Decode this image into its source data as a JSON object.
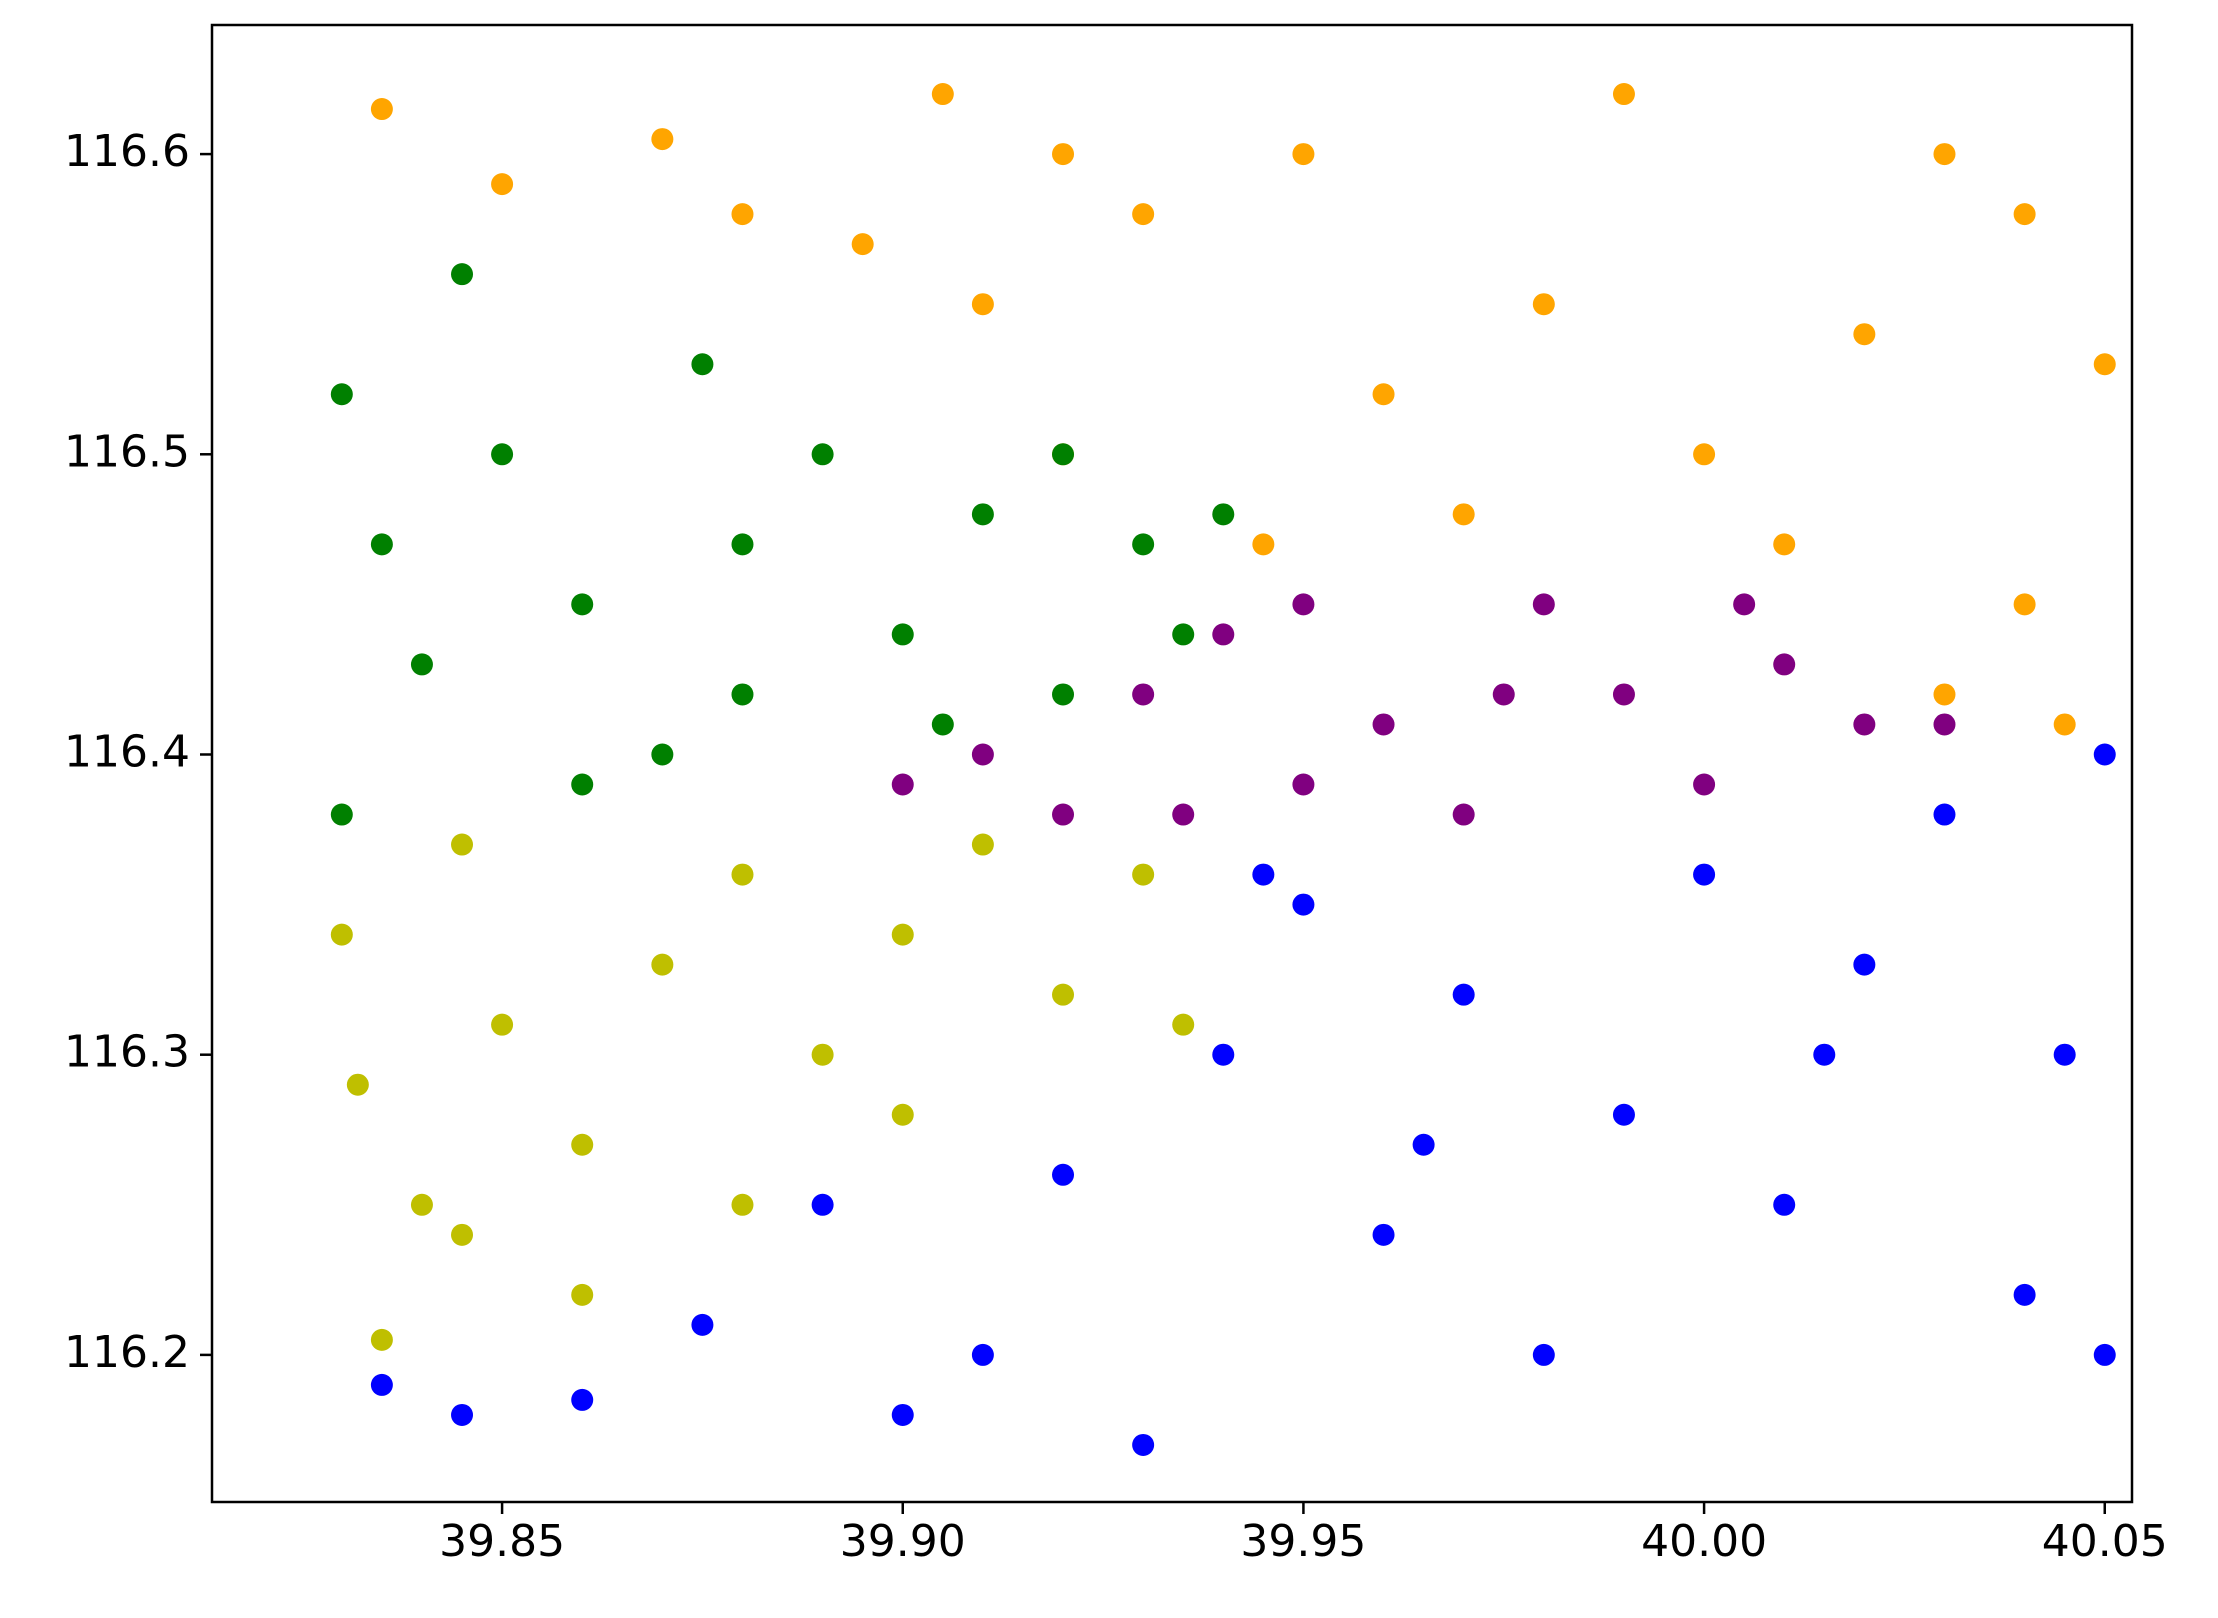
{
  "chart_data": {
    "type": "scatter",
    "xlim": [
      39.8138,
      40.0534
    ],
    "ylim": [
      116.151,
      116.643
    ],
    "xticks": [
      39.85,
      {
        "value": 39.9,
        "label": "39.90"
      },
      39.95,
      {
        "value": 40.0,
        "label": "40.00"
      },
      40.05
    ],
    "yticks": [
      116.2,
      116.3,
      116.4,
      116.5,
      116.6
    ],
    "series": [
      {
        "color": "#ffa500",
        "x": [
          39.835,
          39.85,
          39.87,
          39.88,
          39.895,
          39.905,
          39.91,
          39.92,
          39.93,
          39.95,
          39.96,
          39.97,
          39.98,
          39.99,
          40.0,
          40.01,
          40.02,
          40.03,
          40.04,
          40.05,
          40.04,
          40.03,
          39.945,
          40.045,
          39.92
        ],
        "values": [
          116.615,
          116.59,
          116.605,
          116.58,
          116.57,
          116.62,
          116.55,
          116.5,
          116.58,
          116.6,
          116.52,
          116.48,
          116.55,
          116.62,
          116.5,
          116.47,
          116.54,
          116.6,
          116.58,
          116.53,
          116.45,
          116.42,
          116.47,
          116.41,
          116.6
        ]
      },
      {
        "color": "#008000",
        "x": [
          39.83,
          39.835,
          39.84,
          39.83,
          39.845,
          39.85,
          39.86,
          39.87,
          39.875,
          39.88,
          39.89,
          39.9,
          39.91,
          39.92,
          39.93,
          39.935,
          39.905,
          39.88,
          39.86,
          39.92,
          39.94
        ],
        "values": [
          116.52,
          116.47,
          116.43,
          116.38,
          116.56,
          116.5,
          116.45,
          116.4,
          116.53,
          116.47,
          116.5,
          116.44,
          116.48,
          116.5,
          116.47,
          116.44,
          116.41,
          116.42,
          116.39,
          116.42,
          116.48
        ]
      },
      {
        "color": "#800080",
        "x": [
          39.9,
          39.91,
          39.92,
          39.93,
          39.94,
          39.95,
          39.96,
          39.97,
          39.98,
          39.99,
          40.0,
          40.01,
          40.02,
          40.03,
          39.95,
          39.975,
          39.935,
          40.005
        ],
        "values": [
          116.39,
          116.4,
          116.38,
          116.42,
          116.44,
          116.45,
          116.41,
          116.38,
          116.45,
          116.42,
          116.39,
          116.43,
          116.41,
          116.41,
          116.39,
          116.42,
          116.38,
          116.45
        ]
      },
      {
        "color": "#bfbf00",
        "x": [
          39.83,
          39.832,
          39.835,
          39.84,
          39.845,
          39.85,
          39.86,
          39.87,
          39.88,
          39.89,
          39.9,
          39.91,
          39.92,
          39.93,
          39.935,
          39.86,
          39.88,
          39.9,
          39.845
        ],
        "values": [
          116.34,
          116.29,
          116.205,
          116.25,
          116.37,
          116.31,
          116.27,
          116.33,
          116.36,
          116.3,
          116.34,
          116.37,
          116.32,
          116.36,
          116.31,
          116.22,
          116.25,
          116.28,
          116.24
        ]
      },
      {
        "color": "#0000ff",
        "x": [
          39.835,
          39.845,
          39.86,
          39.875,
          39.89,
          39.9,
          39.91,
          39.92,
          39.93,
          39.94,
          39.95,
          39.96,
          39.97,
          39.98,
          39.99,
          40.0,
          40.01,
          40.02,
          40.03,
          40.04,
          40.05,
          40.05,
          40.045,
          39.965,
          39.945,
          40.015
        ],
        "values": [
          116.19,
          116.18,
          116.185,
          116.21,
          116.25,
          116.18,
          116.2,
          116.26,
          116.17,
          116.3,
          116.35,
          116.24,
          116.32,
          116.2,
          116.28,
          116.36,
          116.25,
          116.33,
          116.38,
          116.22,
          116.2,
          116.4,
          116.3,
          116.27,
          116.36,
          116.3
        ]
      }
    ]
  }
}
